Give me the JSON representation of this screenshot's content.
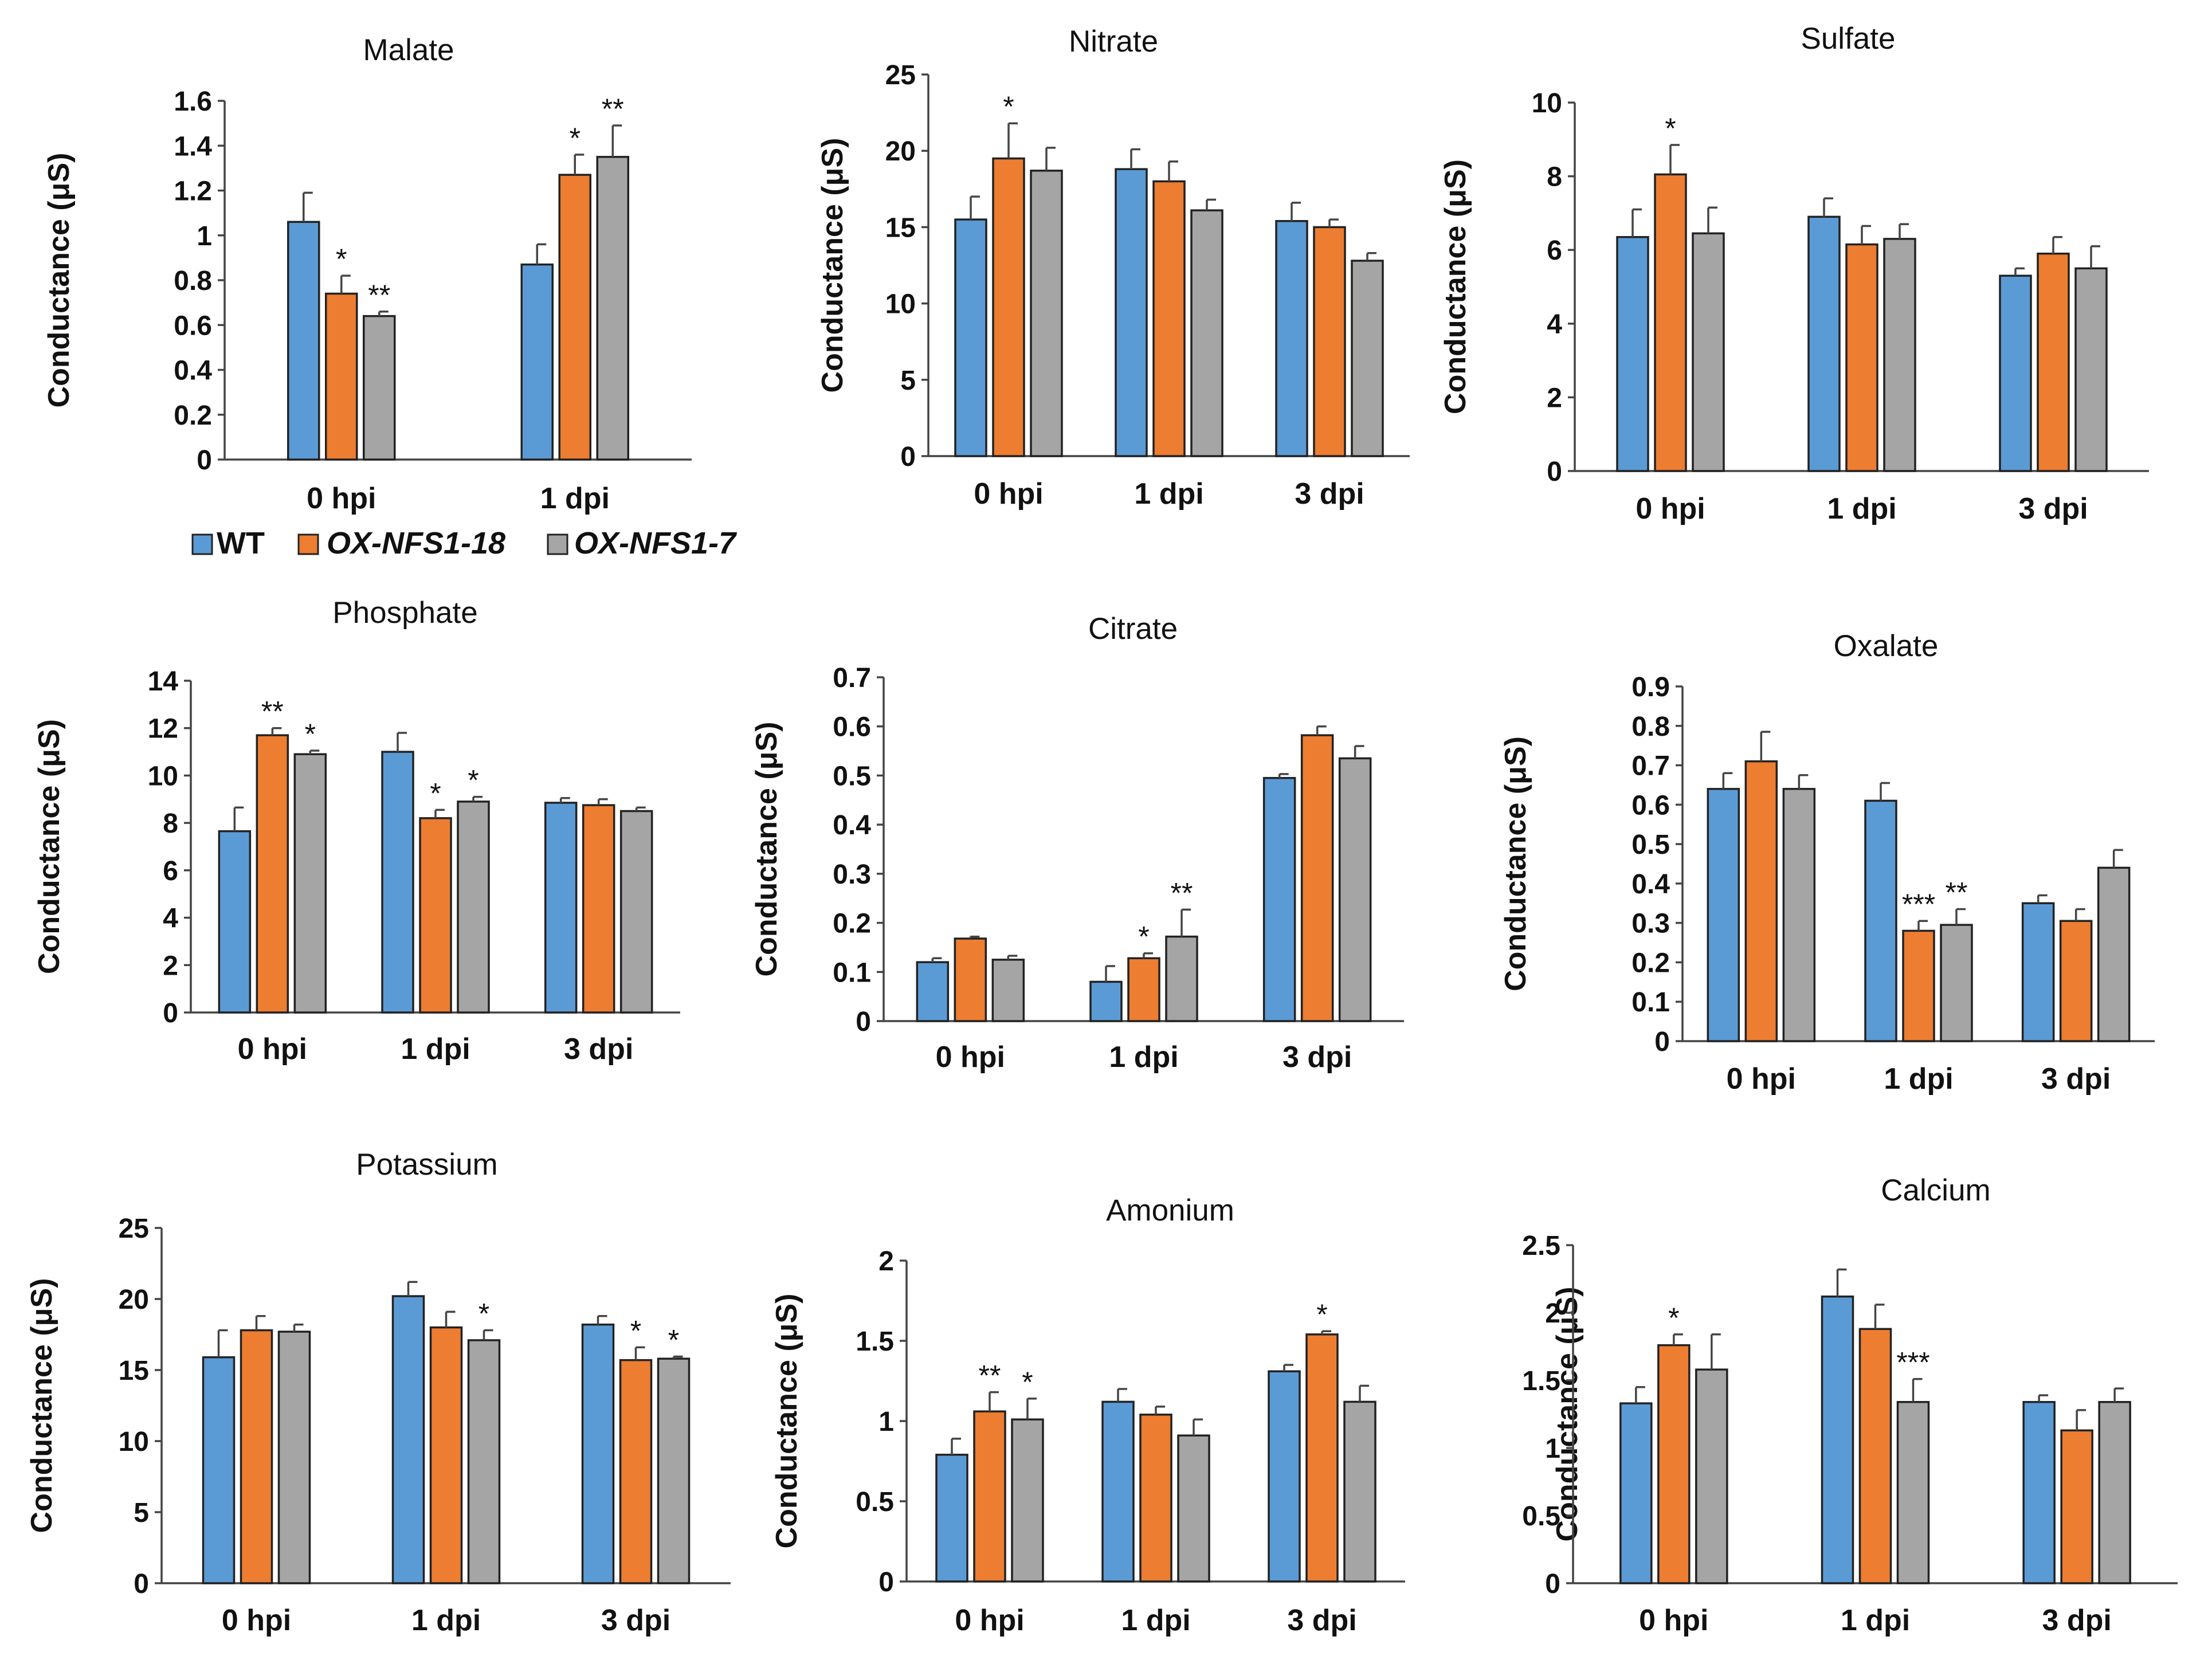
{
  "colors": {
    "WT": "#5b9bd5",
    "OX-NFS1-18": "#ed7d31",
    "OX-NFS1-7": "#a5a5a5"
  },
  "legend": [
    {
      "label": "WT",
      "italic": false
    },
    {
      "label": "OX-NFS1-18",
      "italic": true
    },
    {
      "label": "OX-NFS1-7",
      "italic": true
    }
  ],
  "chart_data": [
    {
      "type": "bar",
      "title": "Malate",
      "ylabel": "Conductance (μS)",
      "ylim": [
        0,
        1.6
      ],
      "ticks": [
        "0",
        "0.2",
        "0.4",
        "0.6",
        "0.8",
        "1",
        "1.2",
        "1.4",
        "1.6"
      ],
      "categories": [
        "0 hpi",
        "1 dpi"
      ],
      "series": [
        {
          "name": "WT",
          "values": [
            1.06,
            0.87
          ],
          "errors": [
            0.13,
            0.09
          ],
          "sig": [
            "",
            ""
          ]
        },
        {
          "name": "OX-NFS1-18",
          "values": [
            0.74,
            1.27
          ],
          "errors": [
            0.08,
            0.09
          ],
          "sig": [
            "*",
            "*"
          ]
        },
        {
          "name": "OX-NFS1-7",
          "values": [
            0.64,
            1.35
          ],
          "errors": [
            0.02,
            0.14
          ],
          "sig": [
            "**",
            "**"
          ]
        }
      ]
    },
    {
      "type": "bar",
      "title": "Nitrate",
      "ylabel": "Conductance (μS)",
      "ylim": [
        0,
        25
      ],
      "ticks": [
        "0",
        "5",
        "10",
        "15",
        "20",
        "25"
      ],
      "categories": [
        "0 hpi",
        "1 dpi",
        "3 dpi"
      ],
      "series": [
        {
          "name": "WT",
          "values": [
            15.5,
            18.8,
            15.4
          ],
          "errors": [
            1.5,
            1.3,
            1.2
          ],
          "sig": [
            "",
            "",
            ""
          ]
        },
        {
          "name": "OX-NFS1-18",
          "values": [
            19.5,
            18.0,
            15.0
          ],
          "errors": [
            2.3,
            1.3,
            0.5
          ],
          "sig": [
            "*",
            "",
            ""
          ]
        },
        {
          "name": "OX-NFS1-7",
          "values": [
            18.7,
            16.1,
            12.8
          ],
          "errors": [
            1.5,
            0.7,
            0.5
          ],
          "sig": [
            "",
            "",
            ""
          ]
        }
      ]
    },
    {
      "type": "bar",
      "title": "Sulfate",
      "ylabel": "Conductance (μS)",
      "ylim": [
        0,
        10
      ],
      "ticks": [
        "0",
        "2",
        "4",
        "6",
        "8",
        "10"
      ],
      "categories": [
        "0 hpi",
        "1 dpi",
        "3 dpi"
      ],
      "series": [
        {
          "name": "WT",
          "values": [
            6.35,
            6.9,
            5.3
          ],
          "errors": [
            0.75,
            0.5,
            0.2
          ],
          "sig": [
            "",
            "",
            ""
          ]
        },
        {
          "name": "OX-NFS1-18",
          "values": [
            8.05,
            6.15,
            5.9
          ],
          "errors": [
            0.8,
            0.5,
            0.45
          ],
          "sig": [
            "*",
            "",
            ""
          ]
        },
        {
          "name": "OX-NFS1-7",
          "values": [
            6.45,
            6.3,
            5.5
          ],
          "errors": [
            0.7,
            0.4,
            0.6
          ],
          "sig": [
            "",
            "",
            ""
          ]
        }
      ]
    },
    {
      "type": "bar",
      "title": "Phosphate",
      "ylabel": "Conductance (μS)",
      "ylim": [
        0,
        14
      ],
      "ticks": [
        "0",
        "2",
        "4",
        "6",
        "8",
        "10",
        "12",
        "14"
      ],
      "categories": [
        "0 hpi",
        "1 dpi",
        "3 dpi"
      ],
      "series": [
        {
          "name": "WT",
          "values": [
            7.65,
            11.0,
            8.85
          ],
          "errors": [
            1.0,
            0.8,
            0.2
          ],
          "sig": [
            "",
            "",
            ""
          ]
        },
        {
          "name": "OX-NFS1-18",
          "values": [
            11.7,
            8.2,
            8.75
          ],
          "errors": [
            0.3,
            0.35,
            0.25
          ],
          "sig": [
            "**",
            "*",
            ""
          ]
        },
        {
          "name": "OX-NFS1-7",
          "values": [
            10.9,
            8.9,
            8.5
          ],
          "errors": [
            0.15,
            0.2,
            0.15
          ],
          "sig": [
            "*",
            "*",
            ""
          ]
        }
      ]
    },
    {
      "type": "bar",
      "title": "Citrate",
      "ylabel": "Conductance (μS)",
      "ylim": [
        0,
        0.7
      ],
      "ticks": [
        "0",
        "0.1",
        "0.2",
        "0.3",
        "0.4",
        "0.5",
        "0.6",
        "0.7"
      ],
      "categories": [
        "0 hpi",
        "1 dpi",
        "3 dpi"
      ],
      "series": [
        {
          "name": "WT",
          "values": [
            0.12,
            0.08,
            0.495
          ],
          "errors": [
            0.008,
            0.032,
            0.008
          ],
          "sig": [
            "",
            "",
            ""
          ]
        },
        {
          "name": "OX-NFS1-18",
          "values": [
            0.168,
            0.128,
            0.582
          ],
          "errors": [
            0.004,
            0.01,
            0.018
          ],
          "sig": [
            "",
            "*",
            ""
          ]
        },
        {
          "name": "OX-NFS1-7",
          "values": [
            0.125,
            0.172,
            0.535
          ],
          "errors": [
            0.008,
            0.055,
            0.025
          ],
          "sig": [
            "",
            "**",
            ""
          ]
        }
      ]
    },
    {
      "type": "bar",
      "title": "Oxalate",
      "ylabel": "Conductance (μS)",
      "ylim": [
        0,
        0.9
      ],
      "ticks": [
        "0",
        "0.1",
        "0.2",
        "0.3",
        "0.4",
        "0.5",
        "0.6",
        "0.7",
        "0.8",
        "0.9"
      ],
      "categories": [
        "0 hpi",
        "1 dpi",
        "3 dpi"
      ],
      "series": [
        {
          "name": "WT",
          "values": [
            0.64,
            0.61,
            0.35
          ],
          "errors": [
            0.04,
            0.045,
            0.02
          ],
          "sig": [
            "",
            "",
            ""
          ]
        },
        {
          "name": "OX-NFS1-18",
          "values": [
            0.71,
            0.28,
            0.305
          ],
          "errors": [
            0.075,
            0.025,
            0.03
          ],
          "sig": [
            "",
            "***",
            ""
          ]
        },
        {
          "name": "OX-NFS1-7",
          "values": [
            0.64,
            0.295,
            0.44
          ],
          "errors": [
            0.035,
            0.04,
            0.045
          ],
          "sig": [
            "",
            "**",
            ""
          ]
        }
      ]
    },
    {
      "type": "bar",
      "title": "Potassium",
      "ylabel": "Conductance (μS)",
      "ylim": [
        0,
        25
      ],
      "ticks": [
        "0",
        "5",
        "10",
        "15",
        "20",
        "25"
      ],
      "categories": [
        "0 hpi",
        "1 dpi",
        "3 dpi"
      ],
      "series": [
        {
          "name": "WT",
          "values": [
            15.9,
            20.2,
            18.2
          ],
          "errors": [
            1.9,
            1.0,
            0.6
          ],
          "sig": [
            "",
            "",
            ""
          ]
        },
        {
          "name": "OX-NFS1-18",
          "values": [
            17.8,
            18.0,
            15.7
          ],
          "errors": [
            1.0,
            1.1,
            0.9
          ],
          "sig": [
            "",
            "",
            "*"
          ]
        },
        {
          "name": "OX-NFS1-7",
          "values": [
            17.7,
            17.1,
            15.8
          ],
          "errors": [
            0.5,
            0.7,
            0.15
          ],
          "sig": [
            "",
            "*",
            "*"
          ]
        }
      ]
    },
    {
      "type": "bar",
      "title": "Amonium",
      "ylabel": "Conductance (μS)",
      "ylim": [
        0,
        2
      ],
      "ticks": [
        "0",
        "0.5",
        "1",
        "1.5",
        "2"
      ],
      "categories": [
        "0 hpi",
        "1 dpi",
        "3 dpi"
      ],
      "series": [
        {
          "name": "WT",
          "values": [
            0.79,
            1.12,
            1.31
          ],
          "errors": [
            0.1,
            0.08,
            0.04
          ],
          "sig": [
            "",
            "",
            ""
          ]
        },
        {
          "name": "OX-NFS1-18",
          "values": [
            1.06,
            1.04,
            1.54
          ],
          "errors": [
            0.12,
            0.05,
            0.02
          ],
          "sig": [
            "**",
            "",
            "*"
          ]
        },
        {
          "name": "OX-NFS1-7",
          "values": [
            1.01,
            0.91,
            1.12
          ],
          "errors": [
            0.13,
            0.1,
            0.1
          ],
          "sig": [
            "*",
            "",
            ""
          ]
        }
      ]
    },
    {
      "type": "bar",
      "title": "Calcium",
      "ylabel": "Conductance (μS)",
      "ylim": [
        0,
        2.5
      ],
      "ticks": [
        "0",
        "0.5",
        "1",
        "1.5",
        "2",
        "2.5"
      ],
      "categories": [
        "0 hpi",
        "1 dpi",
        "3 dpi"
      ],
      "series": [
        {
          "name": "WT",
          "values": [
            1.33,
            2.12,
            1.34
          ],
          "errors": [
            0.12,
            0.2,
            0.05
          ],
          "sig": [
            "",
            "",
            ""
          ]
        },
        {
          "name": "OX-NFS1-18",
          "values": [
            1.76,
            1.88,
            1.13
          ],
          "errors": [
            0.08,
            0.18,
            0.15
          ],
          "sig": [
            "*",
            "",
            ""
          ]
        },
        {
          "name": "OX-NFS1-7",
          "values": [
            1.58,
            1.34,
            1.34
          ],
          "errors": [
            0.26,
            0.17,
            0.1
          ],
          "sig": [
            "",
            "***",
            ""
          ]
        }
      ]
    }
  ]
}
